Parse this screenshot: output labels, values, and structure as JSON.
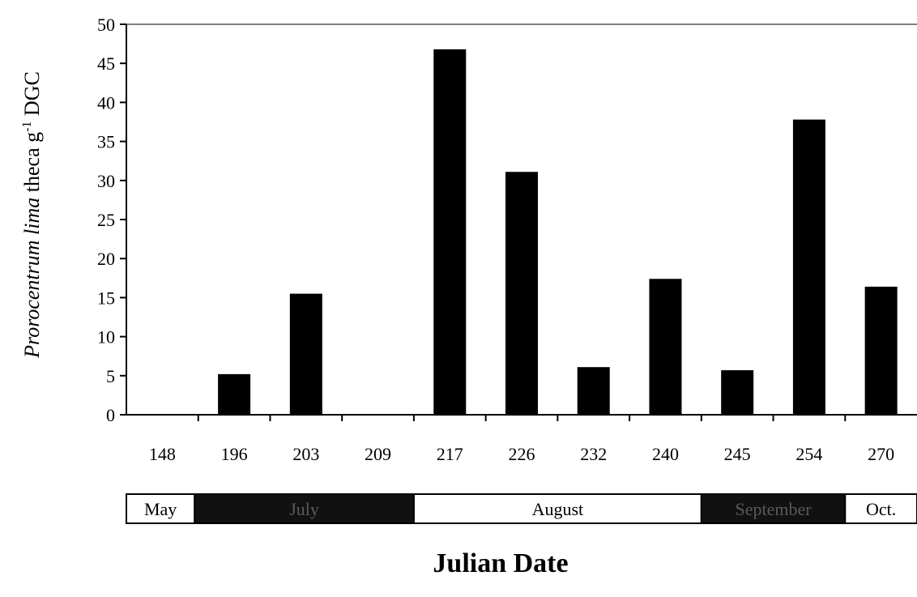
{
  "chart_data": {
    "type": "bar",
    "categories": [
      "148",
      "196",
      "203",
      "209",
      "217",
      "226",
      "232",
      "240",
      "245",
      "254",
      "270"
    ],
    "values": [
      0,
      5.2,
      15.5,
      0,
      46.8,
      31.1,
      6.1,
      17.4,
      5.7,
      37.8,
      16.4
    ],
    "ylabel_italic": "Prorocentrum lima",
    "ylabel_rest": " theca g",
    "ylabel_sup": "-1",
    "ylabel_tail": " DGC",
    "xlabel": "Julian Date",
    "ylim": [
      0,
      50
    ],
    "yticks": [
      "0",
      "5",
      "10",
      "15",
      "20",
      "25",
      "30",
      "35",
      "40",
      "45",
      "50"
    ],
    "bar_color": "#000000",
    "grid": false,
    "months": [
      {
        "label": "May",
        "fill": "#ffffff",
        "text_color": "#000000"
      },
      {
        "label": "July",
        "fill": "#111111",
        "text_color": "#5a5a5a"
      },
      {
        "label": "August",
        "fill": "#ffffff",
        "text_color": "#000000"
      },
      {
        "label": "September",
        "fill": "#111111",
        "text_color": "#5a5a5a"
      },
      {
        "label": "Oct.",
        "fill": "#ffffff",
        "text_color": "#000000"
      }
    ]
  }
}
